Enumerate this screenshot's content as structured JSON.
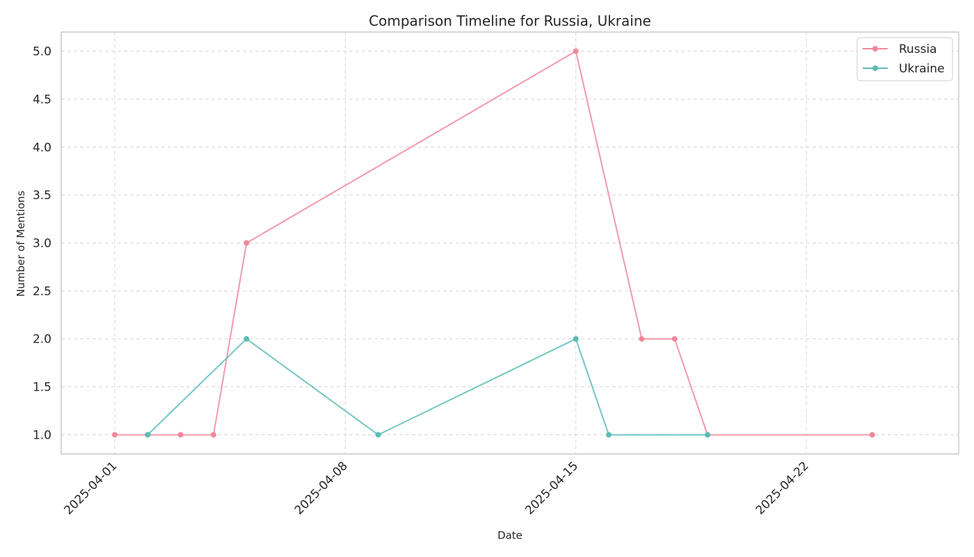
{
  "chart_data": {
    "type": "line",
    "title": "Comparison Timeline for Russia, Ukraine",
    "xlabel": "Date",
    "ylabel": "Number of Mentions",
    "xlim": [
      "2025-03-30T09:00",
      "2025-04-26T15:00"
    ],
    "ylim": [
      0.8,
      5.2
    ],
    "x_ticks": [
      "2025-04-01",
      "2025-04-08",
      "2025-04-15",
      "2025-04-22"
    ],
    "y_ticks": [
      1.0,
      1.5,
      2.0,
      2.5,
      3.0,
      3.5,
      4.0,
      4.5,
      5.0
    ],
    "grid": true,
    "legend_position": "top-right",
    "series": [
      {
        "name": "Russia",
        "color": "#f0879b",
        "points": [
          {
            "x": "2025-04-01",
            "y": 1
          },
          {
            "x": "2025-04-02",
            "y": 1
          },
          {
            "x": "2025-04-03",
            "y": 1
          },
          {
            "x": "2025-04-04",
            "y": 1
          },
          {
            "x": "2025-04-05",
            "y": 3
          },
          {
            "x": "2025-04-15",
            "y": 5
          },
          {
            "x": "2025-04-17",
            "y": 2
          },
          {
            "x": "2025-04-18",
            "y": 2
          },
          {
            "x": "2025-04-19",
            "y": 1
          },
          {
            "x": "2025-04-24",
            "y": 1
          }
        ]
      },
      {
        "name": "Ukraine",
        "color": "#5bbcb5",
        "points": [
          {
            "x": "2025-04-02",
            "y": 1
          },
          {
            "x": "2025-04-05",
            "y": 2
          },
          {
            "x": "2025-04-09",
            "y": 1
          },
          {
            "x": "2025-04-15",
            "y": 2
          },
          {
            "x": "2025-04-16",
            "y": 1
          },
          {
            "x": "2025-04-19",
            "y": 1
          }
        ]
      }
    ]
  }
}
